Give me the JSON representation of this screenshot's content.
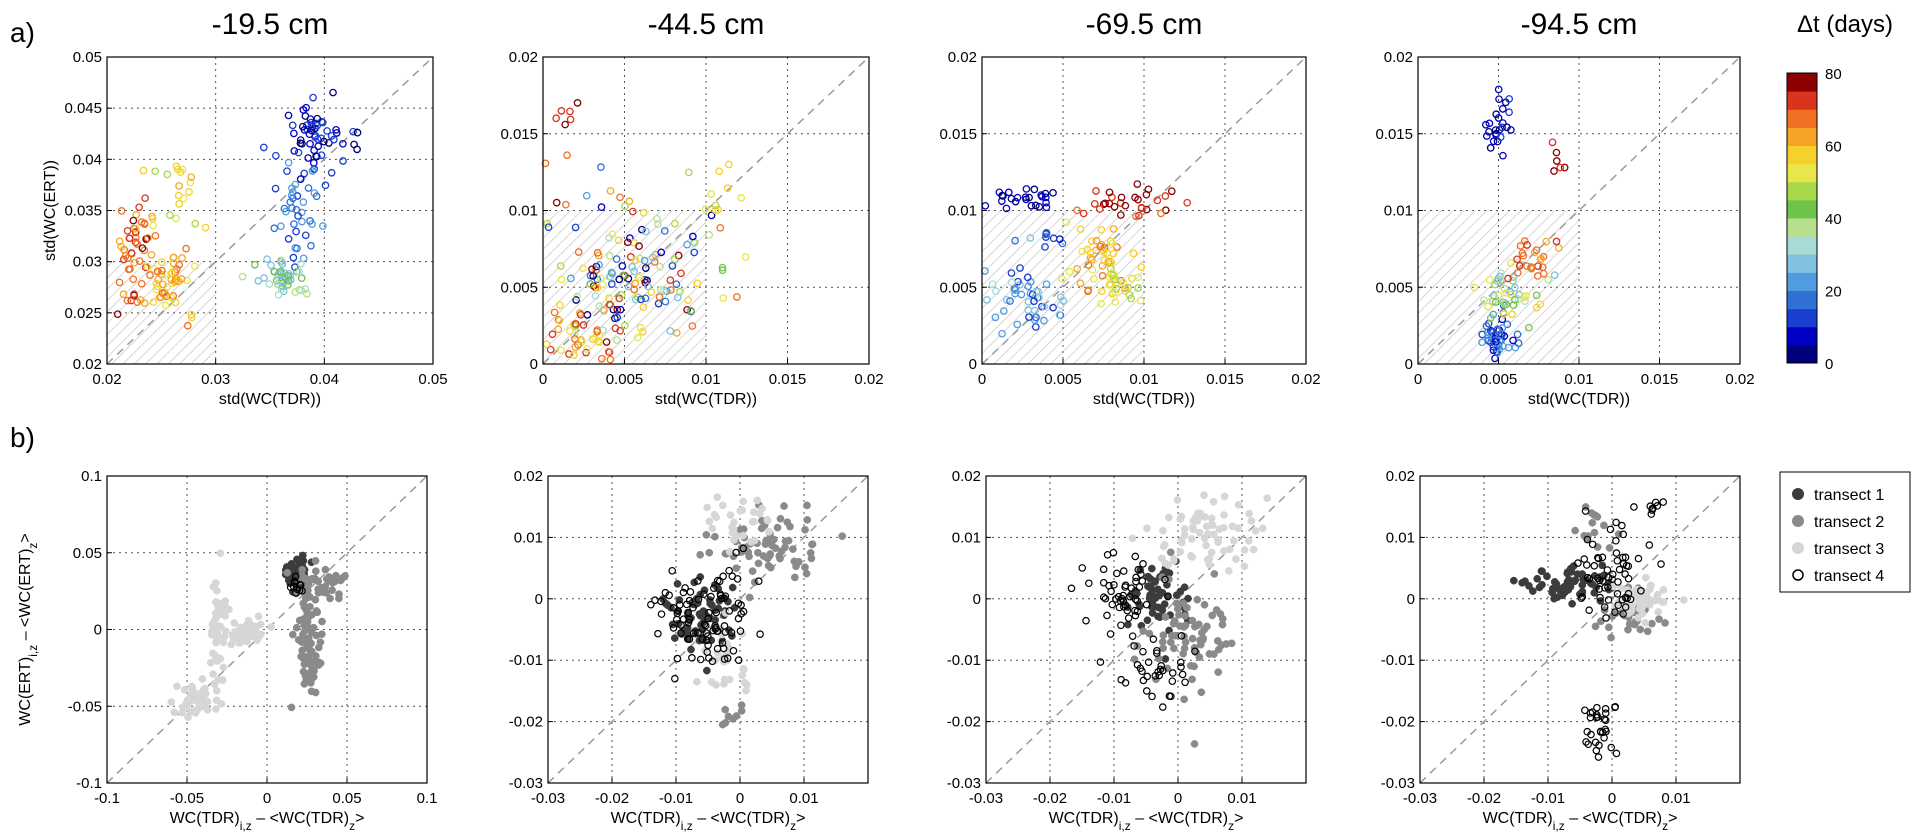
{
  "chart_data": [
    {
      "type": "scatter",
      "panel": "a",
      "panel_label": "a)",
      "title": "-19.5 cm",
      "xlabel": "std(WC(TDR))",
      "ylabel": "std(WC(ERT))",
      "xlim": [
        0.02,
        0.05
      ],
      "ylim": [
        0.02,
        0.05
      ],
      "xticks": [
        "0.02",
        "0.03",
        "0.04",
        "0.05"
      ],
      "yticks": [
        "0.02",
        "0.025",
        "0.03",
        "0.035",
        "0.04",
        "0.045",
        "0.05"
      ],
      "shaded_region": {
        "x": [
          0.02,
          0.03
        ],
        "y": [
          0.02,
          0.03
        ]
      },
      "clusters": [
        {
          "cx": 0.0395,
          "cy": 0.042,
          "sx": 0.0015,
          "sy": 0.0018,
          "n": 60,
          "c": [
            2,
            14
          ]
        },
        {
          "cx": 0.0375,
          "cy": 0.035,
          "sx": 0.0012,
          "sy": 0.0025,
          "n": 40,
          "c": [
            12,
            24
          ]
        },
        {
          "cx": 0.0362,
          "cy": 0.0285,
          "sx": 0.0012,
          "sy": 0.0009,
          "n": 45,
          "c": [
            26,
            44
          ]
        },
        {
          "cx": 0.0225,
          "cy": 0.032,
          "sx": 0.0008,
          "sy": 0.0025,
          "n": 45,
          "c": [
            62,
            80
          ]
        },
        {
          "cx": 0.0255,
          "cy": 0.028,
          "sx": 0.0015,
          "sy": 0.002,
          "n": 55,
          "c": [
            50,
            70
          ]
        },
        {
          "cx": 0.0265,
          "cy": 0.036,
          "sx": 0.0015,
          "sy": 0.002,
          "n": 20,
          "c": [
            48,
            62
          ]
        }
      ]
    },
    {
      "type": "scatter",
      "panel": "a",
      "title": "-44.5 cm",
      "xlabel": "std(WC(TDR))",
      "ylabel": "",
      "xlim": [
        0,
        0.02
      ],
      "ylim": [
        0,
        0.02
      ],
      "xticks": [
        "0",
        "0.005",
        "0.01",
        "0.015",
        "0.02"
      ],
      "yticks": [
        "0",
        "0.005",
        "0.01",
        "0.015",
        "0.02"
      ],
      "shaded_region": {
        "x": [
          0,
          0.01
        ],
        "y": [
          0,
          0.01
        ]
      },
      "clusters": [
        {
          "cx": 0.0055,
          "cy": 0.006,
          "sx": 0.0025,
          "sy": 0.0025,
          "n": 150,
          "c": [
            0,
            80
          ]
        },
        {
          "cx": 0.0025,
          "cy": 0.002,
          "sx": 0.0015,
          "sy": 0.001,
          "n": 40,
          "c": [
            50,
            75
          ]
        },
        {
          "cx": 0.001,
          "cy": 0.0155,
          "sx": 0.0006,
          "sy": 0.0015,
          "n": 8,
          "c": [
            65,
            80
          ]
        },
        {
          "cx": 0.0105,
          "cy": 0.011,
          "sx": 0.0008,
          "sy": 0.0015,
          "n": 10,
          "c": [
            45,
            60
          ]
        }
      ]
    },
    {
      "type": "scatter",
      "panel": "a",
      "title": "-69.5 cm",
      "xlabel": "std(WC(TDR))",
      "ylabel": "",
      "xlim": [
        0,
        0.02
      ],
      "ylim": [
        0,
        0.02
      ],
      "xticks": [
        "0",
        "0.005",
        "0.01",
        "0.015",
        "0.02"
      ],
      "yticks": [
        "0",
        "0.005",
        "0.01",
        "0.015",
        "0.02"
      ],
      "shaded_region": {
        "x": [
          0,
          0.01
        ],
        "y": [
          0,
          0.01
        ]
      },
      "clusters": [
        {
          "cx": 0.0028,
          "cy": 0.0108,
          "sx": 0.0012,
          "sy": 0.0004,
          "n": 25,
          "c": [
            0,
            10
          ]
        },
        {
          "cx": 0.0092,
          "cy": 0.0105,
          "sx": 0.0014,
          "sy": 0.0006,
          "n": 30,
          "c": [
            68,
            80
          ]
        },
        {
          "cx": 0.0025,
          "cy": 0.0045,
          "sx": 0.0014,
          "sy": 0.0012,
          "n": 50,
          "c": [
            10,
            32
          ]
        },
        {
          "cx": 0.0075,
          "cy": 0.007,
          "sx": 0.0012,
          "sy": 0.0012,
          "n": 45,
          "c": [
            52,
            70
          ]
        },
        {
          "cx": 0.0085,
          "cy": 0.005,
          "sx": 0.001,
          "sy": 0.0007,
          "n": 25,
          "c": [
            48,
            60
          ]
        },
        {
          "cx": 0.004,
          "cy": 0.0085,
          "sx": 0.001,
          "sy": 0.0007,
          "n": 8,
          "c": [
            4,
            16
          ]
        }
      ]
    },
    {
      "type": "scatter",
      "panel": "a",
      "title": "-94.5 cm",
      "xlabel": "std(WC(TDR))",
      "ylabel": "",
      "xlim": [
        0,
        0.02
      ],
      "ylim": [
        0,
        0.02
      ],
      "xticks": [
        "0",
        "0.005",
        "0.01",
        "0.015",
        "0.02"
      ],
      "yticks": [
        "0",
        "0.005",
        "0.01",
        "0.015",
        "0.02"
      ],
      "shaded_region": {
        "x": [
          0,
          0.01
        ],
        "y": [
          0,
          0.01
        ]
      },
      "clusters": [
        {
          "cx": 0.005,
          "cy": 0.0155,
          "sx": 0.0004,
          "sy": 0.0012,
          "n": 25,
          "c": [
            2,
            12
          ]
        },
        {
          "cx": 0.0085,
          "cy": 0.0133,
          "sx": 0.0003,
          "sy": 0.0004,
          "n": 6,
          "c": [
            72,
            80
          ]
        },
        {
          "cx": 0.005,
          "cy": 0.0018,
          "sx": 0.0006,
          "sy": 0.0007,
          "n": 45,
          "c": [
            4,
            22
          ]
        },
        {
          "cx": 0.0057,
          "cy": 0.0045,
          "sx": 0.0012,
          "sy": 0.001,
          "n": 45,
          "c": [
            22,
            60
          ]
        },
        {
          "cx": 0.007,
          "cy": 0.0068,
          "sx": 0.0009,
          "sy": 0.0007,
          "n": 25,
          "c": [
            62,
            76
          ]
        }
      ]
    },
    {
      "type": "scatter",
      "panel": "b",
      "panel_label": "b)",
      "xlabel": "WC(TDR)i,z - <WC(TDR)z>",
      "ylabel": "WC(ERT)i,z - <WC(ERT)z>",
      "xlim": [
        -0.1,
        0.1
      ],
      "ylim": [
        -0.1,
        0.1
      ],
      "xticks": [
        "-0.1",
        "-0.05",
        "0",
        "0.05",
        "0.1"
      ],
      "yticks": [
        "-0.1",
        "-0.05",
        "0",
        "0.05",
        "0.1"
      ],
      "clusters": [
        {
          "cx": 0.018,
          "cy": 0.035,
          "sx": 0.003,
          "sy": 0.005,
          "n": 50,
          "t": 1
        },
        {
          "cx": 0.032,
          "cy": 0.03,
          "sx": 0.007,
          "sy": 0.006,
          "n": 40,
          "t": 2
        },
        {
          "cx": 0.026,
          "cy": -0.01,
          "sx": 0.004,
          "sy": 0.018,
          "n": 80,
          "t": 2
        },
        {
          "cx": -0.012,
          "cy": 0.0,
          "sx": 0.006,
          "sy": 0.004,
          "n": 40,
          "t": 3
        },
        {
          "cx": -0.03,
          "cy": 0.0,
          "sx": 0.003,
          "sy": 0.018,
          "n": 50,
          "t": 4
        },
        {
          "cx": -0.045,
          "cy": -0.045,
          "sx": 0.007,
          "sy": 0.006,
          "n": 50,
          "t": 4
        },
        {
          "cx": 0.018,
          "cy": 0.028,
          "sx": 0.002,
          "sy": 0.004,
          "n": 12,
          "t": 5
        }
      ]
    },
    {
      "type": "scatter",
      "panel": "b",
      "xlabel": "WC(TDR)i,z - <WC(TDR)z>",
      "ylabel": "",
      "xlim": [
        -0.03,
        0.02
      ],
      "ylim": [
        -0.03,
        0.02
      ],
      "xticks": [
        "-0.03",
        "-0.02",
        "-0.01",
        "0",
        "0.01"
      ],
      "yticks": [
        "-0.03",
        "-0.02",
        "-0.01",
        "0",
        "0.01",
        "0.02"
      ],
      "clusters": [
        {
          "cx": -0.006,
          "cy": -0.003,
          "sx": 0.003,
          "sy": 0.003,
          "n": 70,
          "t": 1
        },
        {
          "cx": 0.005,
          "cy": 0.008,
          "sx": 0.004,
          "sy": 0.003,
          "n": 70,
          "t": 2
        },
        {
          "cx": -0.001,
          "cy": -0.019,
          "sx": 0.0015,
          "sy": 0.001,
          "n": 8,
          "t": 2
        },
        {
          "cx": 0.0,
          "cy": 0.013,
          "sx": 0.003,
          "sy": 0.002,
          "n": 30,
          "t": 3
        },
        {
          "cx": -0.002,
          "cy": -0.011,
          "sx": 0.002,
          "sy": 0.003,
          "n": 25,
          "t": 3
        },
        {
          "cx": -0.005,
          "cy": -0.003,
          "sx": 0.004,
          "sy": 0.004,
          "n": 90,
          "t": 5
        }
      ]
    },
    {
      "type": "scatter",
      "panel": "b",
      "xlabel": "WC(TDR)i,z - <WC(TDR)z>",
      "ylabel": "",
      "xlim": [
        -0.03,
        0.02
      ],
      "ylim": [
        -0.03,
        0.02
      ],
      "xticks": [
        "-0.03",
        "-0.02",
        "-0.01",
        "0",
        "0.01"
      ],
      "yticks": [
        "-0.03",
        "-0.02",
        "-0.01",
        "0",
        "0.01",
        "0.02"
      ],
      "clusters": [
        {
          "cx": -0.003,
          "cy": 0.0,
          "sx": 0.002,
          "sy": 0.003,
          "n": 60,
          "t": 1
        },
        {
          "cx": 0.001,
          "cy": -0.006,
          "sx": 0.004,
          "sy": 0.005,
          "n": 70,
          "t": 2
        },
        {
          "cx": 0.004,
          "cy": 0.01,
          "sx": 0.005,
          "sy": 0.003,
          "n": 70,
          "t": 3
        },
        {
          "cx": -0.008,
          "cy": 0.001,
          "sx": 0.003,
          "sy": 0.003,
          "n": 50,
          "t": 5
        },
        {
          "cx": -0.004,
          "cy": -0.012,
          "sx": 0.003,
          "sy": 0.003,
          "n": 35,
          "t": 5
        }
      ]
    },
    {
      "type": "scatter",
      "panel": "b",
      "xlabel": "WC(TDR)i,z - <WC(TDR)z>",
      "ylabel": "",
      "xlim": [
        -0.03,
        0.02
      ],
      "ylim": [
        -0.03,
        0.02
      ],
      "xticks": [
        "-0.03",
        "-0.02",
        "-0.01",
        "0",
        "0.01"
      ],
      "yticks": [
        "-0.03",
        "-0.02",
        "-0.01",
        "0",
        "0.01",
        "0.02"
      ],
      "clusters": [
        {
          "cx": -0.007,
          "cy": 0.002,
          "sx": 0.004,
          "sy": 0.0015,
          "n": 60,
          "t": 1
        },
        {
          "cx": -0.003,
          "cy": 0.012,
          "sx": 0.002,
          "sy": 0.002,
          "n": 15,
          "t": 2
        },
        {
          "cx": 0.003,
          "cy": -0.003,
          "sx": 0.002,
          "sy": 0.002,
          "n": 30,
          "t": 2
        },
        {
          "cx": 0.004,
          "cy": 0.0,
          "sx": 0.002,
          "sy": 0.0015,
          "n": 50,
          "t": 3
        },
        {
          "cx": 0.0,
          "cy": 0.004,
          "sx": 0.003,
          "sy": 0.004,
          "n": 60,
          "t": 5
        },
        {
          "cx": -0.002,
          "cy": -0.022,
          "sx": 0.0015,
          "sy": 0.003,
          "n": 30,
          "t": 5
        },
        {
          "cx": 0.006,
          "cy": 0.015,
          "sx": 0.001,
          "sy": 0.0005,
          "n": 8,
          "t": 5
        }
      ]
    }
  ],
  "colorbar": {
    "title": "Δt (days)",
    "min": 0,
    "max": 80,
    "ticks": [
      "0",
      "20",
      "40",
      "60",
      "80"
    ],
    "colors": [
      "#00007f",
      "#0000c4",
      "#1a3fd0",
      "#2f6fd6",
      "#4f9de0",
      "#7fc1df",
      "#a8dad6",
      "#b6e08e",
      "#6ec34a",
      "#a6d84a",
      "#e8e64a",
      "#f6d02c",
      "#f7a426",
      "#f06f22",
      "#d9341d",
      "#8c0000"
    ]
  },
  "legend": {
    "entries": [
      {
        "label": "transect 1",
        "fill": "#3c3c3c",
        "hollow": false
      },
      {
        "label": "transect 2",
        "fill": "#8a8a8a",
        "hollow": false
      },
      {
        "label": "transect 3",
        "fill": "#d6d6d6",
        "hollow": false
      },
      {
        "label": "transect 4",
        "fill": "#000000",
        "hollow": true
      }
    ]
  }
}
